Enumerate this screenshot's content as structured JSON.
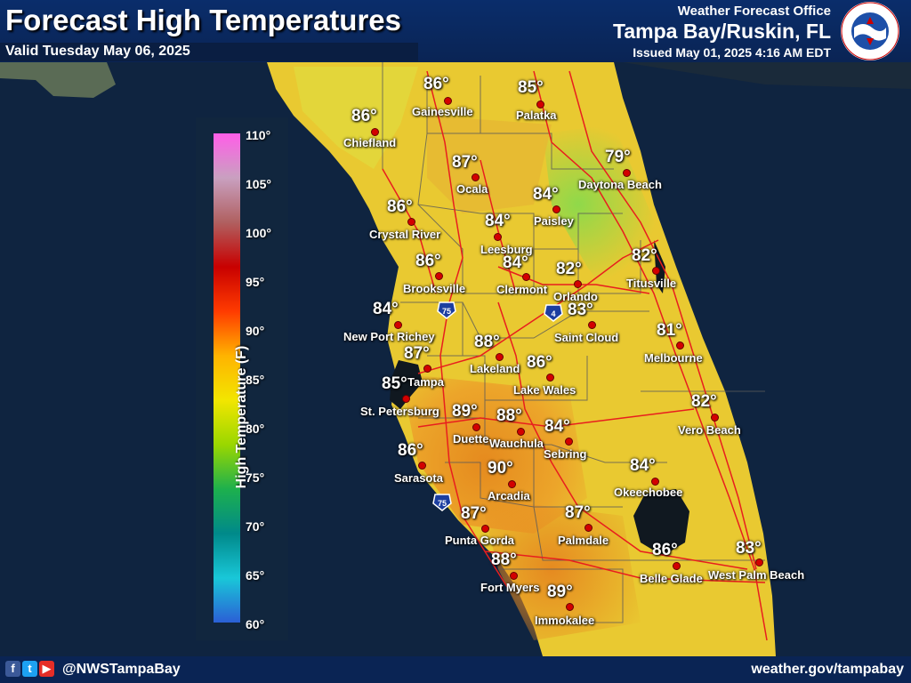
{
  "header": {
    "title": "Forecast High Temperatures",
    "valid": "Valid Tuesday May 06, 2025",
    "office_line1": "Weather Forecast Office",
    "office_line2": "Tampa Bay/Ruskin, FL",
    "issued": "Issued May 01, 2025 4:16 AM EDT",
    "logo_text": "NATIONAL WEATHER SERVICE"
  },
  "legend": {
    "title": "High Temperature (F)",
    "ticks": [
      "110°",
      "105°",
      "100°",
      "95°",
      "90°",
      "85°",
      "80°",
      "75°",
      "70°",
      "65°",
      "60°"
    ],
    "colors": [
      "#ff5ee8",
      "#c9a0c0",
      "#b06060",
      "#c80000",
      "#ff3b00",
      "#ffb300",
      "#f2e600",
      "#9ad700",
      "#1db04d",
      "#00898a",
      "#19c7d8",
      "#2b5fd6"
    ]
  },
  "highways": [
    {
      "name": "I-75",
      "label": "75"
    },
    {
      "name": "I-4",
      "label": "4"
    },
    {
      "name": "I-75",
      "label": "75"
    }
  ],
  "cities": [
    {
      "name": "Gainesville",
      "temp": "86°"
    },
    {
      "name": "Palatka",
      "temp": "85°"
    },
    {
      "name": "Chiefland",
      "temp": "86°"
    },
    {
      "name": "Daytona Beach",
      "temp": "79°"
    },
    {
      "name": "Ocala",
      "temp": "87°"
    },
    {
      "name": "Paisley",
      "temp": "84°"
    },
    {
      "name": "Crystal River",
      "temp": "86°"
    },
    {
      "name": "Leesburg",
      "temp": "84°"
    },
    {
      "name": "Clermont",
      "temp": "84°"
    },
    {
      "name": "Orlando",
      "temp": "82°"
    },
    {
      "name": "Titusville",
      "temp": "82°"
    },
    {
      "name": "Brooksville",
      "temp": "86°"
    },
    {
      "name": "New Port Richey",
      "temp": "84°"
    },
    {
      "name": "Saint Cloud",
      "temp": "83°"
    },
    {
      "name": "Melbourne",
      "temp": "81°"
    },
    {
      "name": "Lakeland",
      "temp": "88°"
    },
    {
      "name": "Tampa",
      "temp": "87°"
    },
    {
      "name": "Lake Wales",
      "temp": "86°"
    },
    {
      "name": "St. Petersburg",
      "temp": "85°"
    },
    {
      "name": "Duette",
      "temp": "89°"
    },
    {
      "name": "Wauchula",
      "temp": "88°"
    },
    {
      "name": "Vero Beach",
      "temp": "82°"
    },
    {
      "name": "Sebring",
      "temp": "84°"
    },
    {
      "name": "Sarasota",
      "temp": "86°"
    },
    {
      "name": "Arcadia",
      "temp": "90°"
    },
    {
      "name": "Okeechobee",
      "temp": "84°"
    },
    {
      "name": "Punta Gorda",
      "temp": "87°"
    },
    {
      "name": "Palmdale",
      "temp": "87°"
    },
    {
      "name": "Fort Myers",
      "temp": "88°"
    },
    {
      "name": "Belle Glade",
      "temp": "86°"
    },
    {
      "name": "West Palm Beach",
      "temp": "83°"
    },
    {
      "name": "Immokalee",
      "temp": "89°"
    }
  ],
  "footer": {
    "social_icons": [
      "facebook-icon",
      "twitter-icon",
      "youtube-icon"
    ],
    "handle": "@NWSTampaBay",
    "website": "weather.gov/tampabay"
  }
}
